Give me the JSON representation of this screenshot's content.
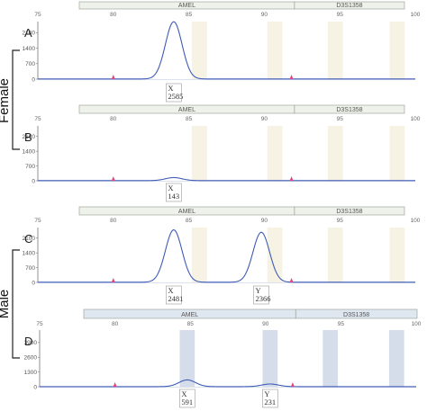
{
  "figure": {
    "groups": [
      {
        "label": "Female",
        "panels": [
          0,
          1
        ]
      },
      {
        "label": "Male",
        "panels": [
          2,
          3
        ]
      }
    ]
  },
  "chart_data": [
    {
      "type": "line",
      "panel_label": "A",
      "xlim": [
        75,
        100
      ],
      "x_ticks": [
        75,
        80,
        85,
        90,
        95,
        100
      ],
      "ylim": [
        0,
        2600
      ],
      "y_ticks": [
        0,
        700,
        1400,
        2100
      ],
      "markers": [
        {
          "name": "AMEL",
          "range": [
            75,
            92
          ]
        },
        {
          "name": "D3S1358",
          "range": [
            92,
            100
          ]
        }
      ],
      "bins": [
        [
          85.2,
          86.2
        ],
        [
          90.2,
          91.2
        ],
        [
          94.2,
          95.2
        ],
        [
          98.3,
          99.3
        ]
      ],
      "bin_shade": "#f6f3e4",
      "peaks": [
        {
          "allele": "X",
          "size": 84.0,
          "height": 2585
        }
      ],
      "calls": [
        {
          "allele": "X",
          "height_label": "2585"
        }
      ],
      "dye": "blue",
      "line_color": "#3f5bb5"
    },
    {
      "type": "line",
      "panel_label": "B",
      "xlim": [
        75,
        100
      ],
      "x_ticks": [
        75,
        80,
        85,
        90,
        95,
        100
      ],
      "ylim": [
        0,
        2600
      ],
      "y_ticks": [
        0,
        700,
        1400,
        2100
      ],
      "markers": [
        {
          "name": "AMEL",
          "range": [
            75,
            92
          ]
        },
        {
          "name": "D3S1358",
          "range": [
            92,
            100
          ]
        }
      ],
      "bins": [
        [
          85.2,
          86.2
        ],
        [
          90.2,
          91.2
        ],
        [
          94.2,
          95.2
        ],
        [
          98.3,
          99.3
        ]
      ],
      "bin_shade": "#f6f3e4",
      "peaks": [
        {
          "allele": "X",
          "size": 84.0,
          "height": 143
        }
      ],
      "calls": [
        {
          "allele": "X",
          "height_label": "143"
        }
      ],
      "dye": "blue",
      "line_color": "#3f5bb5"
    },
    {
      "type": "line",
      "panel_label": "C",
      "xlim": [
        75,
        100
      ],
      "x_ticks": [
        75,
        80,
        85,
        90,
        95,
        100
      ],
      "ylim": [
        0,
        2600
      ],
      "y_ticks": [
        0,
        700,
        1400,
        2100
      ],
      "markers": [
        {
          "name": "AMEL",
          "range": [
            75,
            92
          ]
        },
        {
          "name": "D3S1358",
          "range": [
            92,
            100
          ]
        }
      ],
      "bins": [
        [
          85.2,
          86.2
        ],
        [
          90.2,
          91.2
        ],
        [
          94.2,
          95.2
        ],
        [
          98.3,
          99.3
        ]
      ],
      "bin_shade": "#f6f3e4",
      "peaks": [
        {
          "allele": "X",
          "size": 84.0,
          "height": 2481
        },
        {
          "allele": "Y",
          "size": 89.8,
          "height": 2366
        }
      ],
      "calls": [
        {
          "allele": "X",
          "height_label": "2481"
        },
        {
          "allele": "Y",
          "height_label": "2366"
        }
      ],
      "dye": "blue",
      "line_color": "#3f5bb5"
    },
    {
      "type": "line",
      "panel_label": "D",
      "xlim": [
        75,
        100
      ],
      "x_ticks": [
        75,
        80,
        85,
        90,
        95,
        100
      ],
      "ylim": [
        0,
        5000
      ],
      "y_ticks": [
        0,
        1300,
        2600,
        3900
      ],
      "markers": [
        {
          "name": "AMEL",
          "range": [
            75,
            92
          ]
        },
        {
          "name": "D3S1358",
          "range": [
            92,
            100
          ]
        }
      ],
      "bins": [
        [
          84.3,
          85.3
        ],
        [
          89.8,
          90.8
        ],
        [
          93.8,
          94.8
        ],
        [
          98.2,
          99.2
        ]
      ],
      "bin_shade": "#d4dde9",
      "peaks": [
        {
          "allele": "X",
          "size": 84.8,
          "height": 591
        },
        {
          "allele": "Y",
          "size": 90.3,
          "height": 231
        }
      ],
      "calls": [
        {
          "allele": "X",
          "height_label": "591"
        },
        {
          "allele": "Y",
          "height_label": "231"
        }
      ],
      "dye": "blue",
      "line_color": "#3f5bb5"
    }
  ]
}
